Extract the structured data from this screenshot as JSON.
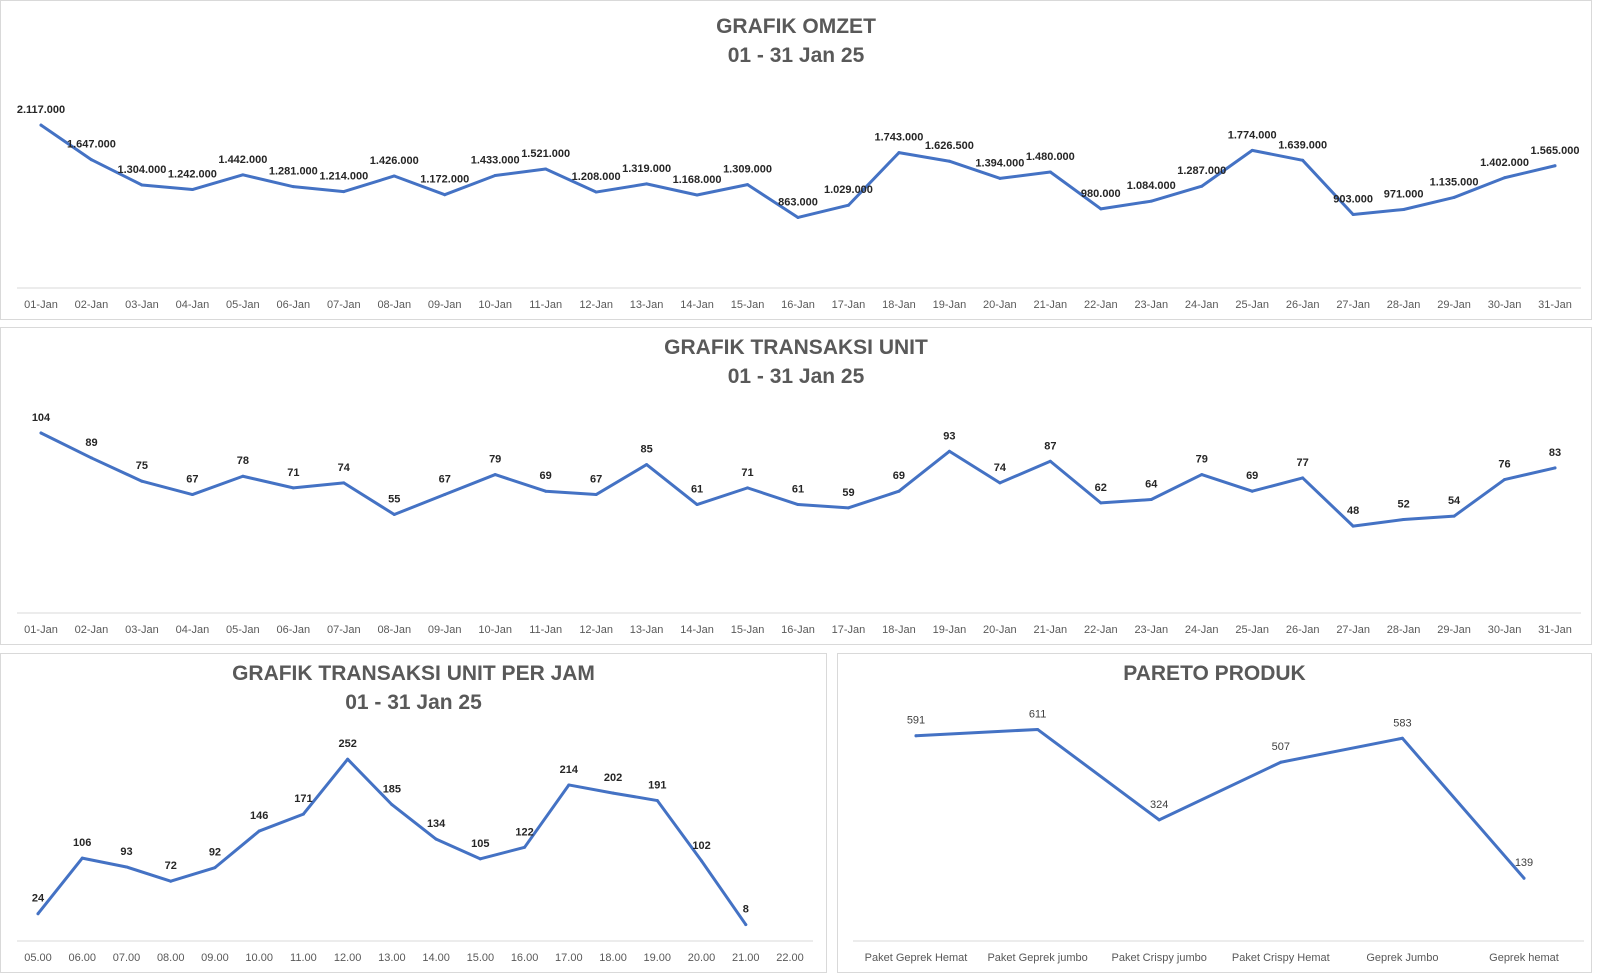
{
  "chart_data": [
    {
      "id": "omzet",
      "type": "line",
      "title": "GRAFIK OMZET",
      "subtitle": "01 - 31 Jan 25",
      "categories": [
        "01-Jan",
        "02-Jan",
        "03-Jan",
        "04-Jan",
        "05-Jan",
        "06-Jan",
        "07-Jan",
        "08-Jan",
        "09-Jan",
        "10-Jan",
        "11-Jan",
        "12-Jan",
        "13-Jan",
        "14-Jan",
        "15-Jan",
        "16-Jan",
        "17-Jan",
        "18-Jan",
        "19-Jan",
        "20-Jan",
        "21-Jan",
        "22-Jan",
        "23-Jan",
        "24-Jan",
        "25-Jan",
        "26-Jan",
        "27-Jan",
        "28-Jan",
        "29-Jan",
        "30-Jan",
        "31-Jan"
      ],
      "values": [
        2117000,
        1647000,
        1304000,
        1242000,
        1442000,
        1281000,
        1214000,
        1426000,
        1172000,
        1433000,
        1521000,
        1208000,
        1319000,
        1168000,
        1309000,
        863000,
        1029000,
        1743000,
        1626500,
        1394000,
        1480000,
        980000,
        1084000,
        1287000,
        1774000,
        1639000,
        903000,
        971000,
        1135000,
        1402000,
        1565000
      ],
      "labels": [
        "2.117.000",
        "1.647.000",
        "1.304.000",
        "1.242.000",
        "1.442.000",
        "1.281.000",
        "1.214.000",
        "1.426.000",
        "1.172.000",
        "1.433.000",
        "1.521.000",
        "1.208.000",
        "1.319.000",
        "1.168.000",
        "1.309.000",
        "863.000",
        "1.029.000",
        "1.743.000",
        "1.626.500",
        "1.394.000",
        "1.480.000",
        "980.000",
        "1.084.000",
        "1.287.000",
        "1.774.000",
        "1.639.000",
        "903.000",
        "971.000",
        "1.135.000",
        "1.402.000",
        "1.565.000"
      ],
      "ylim": [
        0,
        2200000
      ],
      "grid": false,
      "line_color": "#4472c4"
    },
    {
      "id": "unit",
      "type": "line",
      "title": "GRAFIK TRANSAKSI UNIT",
      "subtitle": "01 - 31 Jan 25",
      "categories": [
        "01-Jan",
        "02-Jan",
        "03-Jan",
        "04-Jan",
        "05-Jan",
        "06-Jan",
        "07-Jan",
        "08-Jan",
        "09-Jan",
        "10-Jan",
        "11-Jan",
        "12-Jan",
        "13-Jan",
        "14-Jan",
        "15-Jan",
        "16-Jan",
        "17-Jan",
        "18-Jan",
        "19-Jan",
        "20-Jan",
        "21-Jan",
        "22-Jan",
        "23-Jan",
        "24-Jan",
        "25-Jan",
        "26-Jan",
        "27-Jan",
        "28-Jan",
        "29-Jan",
        "30-Jan",
        "31-Jan"
      ],
      "values": [
        104,
        89,
        75,
        67,
        78,
        71,
        74,
        55,
        67,
        79,
        69,
        67,
        85,
        61,
        71,
        61,
        59,
        69,
        93,
        74,
        87,
        62,
        64,
        79,
        69,
        77,
        48,
        52,
        54,
        76,
        83
      ],
      "ylim": [
        0,
        110
      ],
      "grid": false,
      "line_color": "#4472c4"
    },
    {
      "id": "perjam",
      "type": "line",
      "title": "GRAFIK TRANSAKSI UNIT PER JAM",
      "subtitle": "01 - 31 Jan 25",
      "categories": [
        "05.00",
        "06.00",
        "07.00",
        "08.00",
        "09.00",
        "10.00",
        "11.00",
        "12.00",
        "13.00",
        "14.00",
        "15.00",
        "16.00",
        "17.00",
        "18.00",
        "19.00",
        "20.00",
        "21.00",
        "22.00"
      ],
      "values": [
        24,
        106,
        93,
        72,
        92,
        146,
        171,
        252,
        185,
        134,
        105,
        122,
        214,
        202,
        191,
        102,
        8,
        null
      ],
      "ylim": [
        0,
        270
      ],
      "grid": false,
      "line_color": "#4472c4"
    },
    {
      "id": "pareto",
      "type": "line",
      "title": "PARETO PRODUK",
      "subtitle": "",
      "categories": [
        "Paket Geprek Hemat",
        "Paket Geprek jumbo",
        "Paket Crispy jumbo",
        "Paket Crispy Hemat",
        "Geprek Jumbo",
        "Geprek hemat"
      ],
      "values": [
        591,
        611,
        324,
        507,
        583,
        139
      ],
      "ylim": [
        0,
        660
      ],
      "grid": false,
      "line_color": "#4472c4"
    }
  ]
}
